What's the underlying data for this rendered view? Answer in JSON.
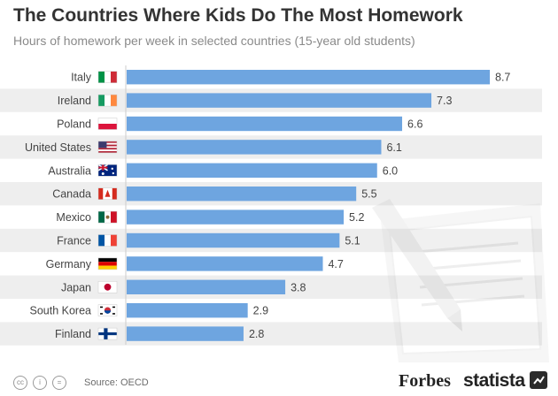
{
  "header": {
    "title": "The Countries Where Kids Do The Most Homework",
    "subtitle": "Hours of homework per week in selected countries (15-year old students)"
  },
  "chart_data": {
    "type": "bar",
    "orientation": "horizontal",
    "categories": [
      "Italy",
      "Ireland",
      "Poland",
      "United States",
      "Australia",
      "Canada",
      "Mexico",
      "France",
      "Germany",
      "Japan",
      "South Korea",
      "Finland"
    ],
    "values": [
      8.7,
      7.3,
      6.6,
      6.1,
      6.0,
      5.5,
      5.2,
      5.1,
      4.7,
      3.8,
      2.9,
      2.8
    ],
    "value_labels": [
      "8.7",
      "7.3",
      "6.6",
      "6.1",
      "6.0",
      "5.5",
      "5.2",
      "5.1",
      "4.7",
      "3.8",
      "2.9",
      "2.8"
    ],
    "flags": [
      "italy-flag",
      "ireland-flag",
      "poland-flag",
      "united-states-flag",
      "australia-flag",
      "canada-flag",
      "mexico-flag",
      "france-flag",
      "germany-flag",
      "japan-flag",
      "south-korea-flag",
      "finland-flag"
    ],
    "bar_color": "#6ea5e0",
    "stripe_color": "#eeeeee",
    "title": "The Countries Where Kids Do The Most Homework",
    "subtitle": "Hours of homework per week in selected countries (15-year old students)",
    "xlim": [
      0,
      8.7
    ],
    "grid": false,
    "legend": "none"
  },
  "footer": {
    "source": "Source: OECD",
    "brand_left": "Forbes",
    "brand_right": "statista",
    "license_icons": [
      "cc",
      "i",
      "="
    ]
  }
}
